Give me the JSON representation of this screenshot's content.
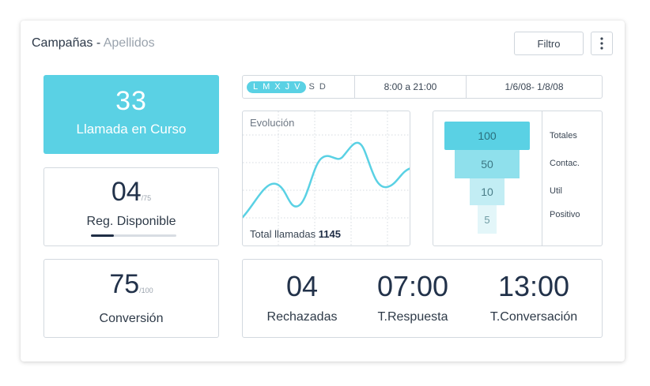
{
  "header": {
    "title": "Campañas",
    "separator": " - ",
    "subtitle": "Apellidos",
    "filter_label": "Filtro",
    "more_icon": "vertical-ellipsis-icon"
  },
  "llamada_en_curso": {
    "value": "33",
    "label": "Llamada en Curso",
    "color": "#5ad1e4"
  },
  "registros": {
    "value": "04",
    "total": "/75",
    "label": "Reg. Disponible",
    "progress": 0.05
  },
  "conversion": {
    "value": "75",
    "total": "/100",
    "label": "Conversión"
  },
  "schedule": {
    "days": [
      {
        "label": "L",
        "active": true
      },
      {
        "label": "M",
        "active": true
      },
      {
        "label": "X",
        "active": true
      },
      {
        "label": "J",
        "active": true
      },
      {
        "label": "V",
        "active": true
      },
      {
        "label": "S",
        "active": false
      },
      {
        "label": "D",
        "active": false
      }
    ],
    "hours": "8:00 a 21:00",
    "dates": "1/6/08- 1/8/08"
  },
  "evolucion": {
    "title": "Evolución",
    "total_label": "Total llamadas",
    "total_value": "1145",
    "line_color": "#5ad1e4"
  },
  "funnel": {
    "steps": [
      {
        "value": "100",
        "label": "Totales",
        "color": "#5ad1e4"
      },
      {
        "value": "50",
        "label": "Contac.",
        "color": "#8fe0ec"
      },
      {
        "value": "10",
        "label": "Util",
        "color": "#c2edf4"
      },
      {
        "value": "5",
        "label": "Positivo",
        "color": "#e3f6f9"
      }
    ]
  },
  "stats": [
    {
      "value": "04",
      "label": "Rechazadas"
    },
    {
      "value": "07:00",
      "label": "T.Respuesta"
    },
    {
      "value": "13:00",
      "label": "T.Conversación"
    }
  ]
}
